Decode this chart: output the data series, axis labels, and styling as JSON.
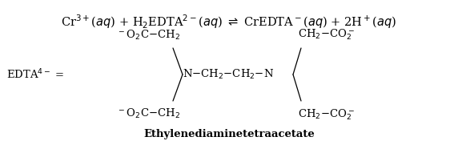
{
  "background_color": "#ffffff",
  "figsize": [
    5.72,
    1.86
  ],
  "dpi": 100,
  "caption": "Ethylenediaminetetraacetate",
  "fontsize_eq": 10.5,
  "fontsize_struct": 9.5,
  "fontsize_caption": 9.5
}
